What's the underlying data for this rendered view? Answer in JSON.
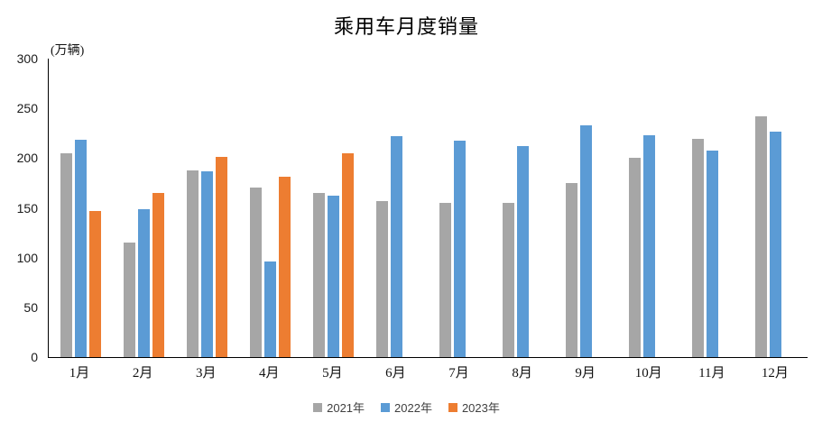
{
  "chart": {
    "title": "乘用车月度销量",
    "unit_label": "(万辆)",
    "axis_color": "#000000",
    "label_color": "#1a1a1a",
    "legend_text_color": "#404040",
    "background": "#ffffff"
  },
  "chart_data": {
    "type": "bar",
    "title": "乘用车月度销量",
    "xlabel": "",
    "ylabel": "(万辆)",
    "categories": [
      "1月",
      "2月",
      "3月",
      "4月",
      "5月",
      "6月",
      "7月",
      "8月",
      "9月",
      "10月",
      "11月",
      "12月"
    ],
    "series": [
      {
        "name": "2021年",
        "color": "#A6A6A6",
        "values": [
          204.5,
          115.6,
          187.4,
          170.4,
          164.6,
          156.9,
          155.1,
          155.2,
          175.1,
          200.4,
          219.2,
          242.2
        ]
      },
      {
        "name": "2022年",
        "color": "#5B9BD5",
        "values": [
          218.6,
          148.7,
          186.4,
          96.5,
          162.3,
          222.2,
          217.4,
          212.5,
          233.2,
          223.1,
          207.5,
          226.3
        ]
      },
      {
        "name": "2023年",
        "color": "#ED7D31",
        "values": [
          146.9,
          165.3,
          201.7,
          181.1,
          205.1,
          null,
          null,
          null,
          null,
          null,
          null,
          null
        ]
      }
    ],
    "ylim": [
      0,
      300
    ],
    "yticks": [
      0,
      50,
      100,
      150,
      200,
      250,
      300
    ],
    "grid": false,
    "legend_position": "bottom"
  }
}
